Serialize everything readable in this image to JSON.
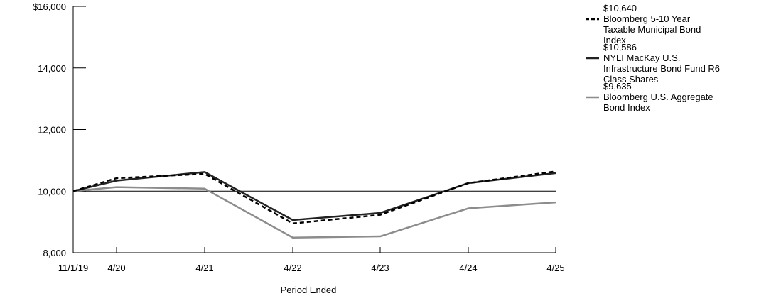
{
  "chart_data": {
    "type": "line",
    "xlabel": "Period Ended",
    "ylabel": "",
    "x": [
      "11/1/19",
      "4/20",
      "4/21",
      "4/22",
      "4/23",
      "4/24",
      "4/25"
    ],
    "ylim": [
      8000,
      16000
    ],
    "yticks": [
      8000,
      10000,
      12000,
      14000,
      16000
    ],
    "ytick_labels": [
      "8,000",
      "10,000",
      "12,000",
      "14,000",
      "$16,000"
    ],
    "reference_line": 10000,
    "legend_position": "top-right",
    "series": [
      {
        "name": "Bloomberg 5-10 Year Taxable Municipal Bond Index",
        "end_label": "$10,640",
        "color": "#000000",
        "style": "dashed",
        "values": [
          10000,
          10420,
          10560,
          8950,
          9230,
          10260,
          10640
        ]
      },
      {
        "name": "NYLI MacKay U.S. Infrastructure Bond Fund R6 Class Shares",
        "end_label": "$10,586",
        "color": "#222222",
        "style": "solid",
        "values": [
          10000,
          10340,
          10620,
          9060,
          9290,
          10260,
          10586
        ]
      },
      {
        "name": "Bloomberg U.S. Aggregate Bond Index",
        "end_label": "$9,635",
        "color": "#8c8c8c",
        "style": "solid",
        "values": [
          10000,
          10130,
          10080,
          8490,
          8530,
          9440,
          9635
        ]
      }
    ]
  }
}
